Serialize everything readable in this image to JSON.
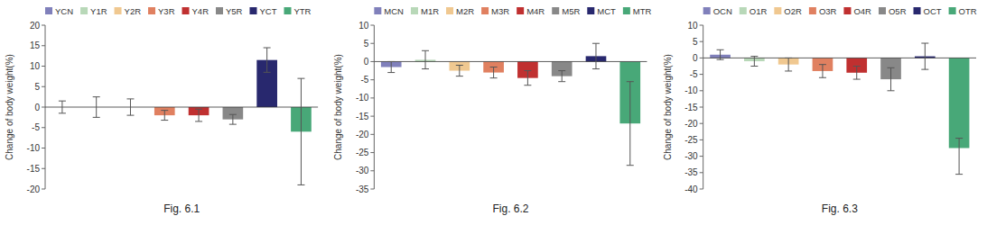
{
  "chart_data": [
    {
      "type": "bar",
      "title": "Fig. 6.1",
      "y_label": "Change of body weight(%)",
      "categories": [
        "YCN",
        "Y1R",
        "Y2R",
        "Y3R",
        "Y4R",
        "Y5R",
        "YCT",
        "YTR"
      ],
      "values": [
        0.0,
        0.0,
        0.0,
        -2.0,
        -2.0,
        -3.0,
        11.5,
        -6.0
      ],
      "errors_up": [
        1.5,
        2.5,
        2.0,
        1.2,
        1.5,
        1.2,
        3.0,
        13.0
      ],
      "errors_dn": [
        1.5,
        2.5,
        2.0,
        1.2,
        1.5,
        1.2,
        3.0,
        13.0
      ],
      "colors": [
        "#8080bb",
        "#b8d8b8",
        "#f0c890",
        "#e08060",
        "#c03030",
        "#888888",
        "#28286e",
        "#48a878"
      ],
      "ylim": [
        -20,
        20
      ],
      "yticks": [
        -20,
        -15,
        -10,
        -5,
        0,
        5,
        10,
        15,
        20
      ],
      "legend": "top",
      "grid": false,
      "tick_labels": "y"
    },
    {
      "type": "bar",
      "title": "Fig. 6.2",
      "y_label": "Change of body weight(%)",
      "categories": [
        "MCN",
        "M1R",
        "M2R",
        "M3R",
        "M4R",
        "M5R",
        "MCT",
        "MTR"
      ],
      "values": [
        -1.5,
        0.5,
        -2.5,
        -3.0,
        -4.5,
        -4.0,
        1.5,
        -17.0
      ],
      "errors_up": [
        1.5,
        2.5,
        1.5,
        1.5,
        2.0,
        1.5,
        3.5,
        11.5
      ],
      "errors_dn": [
        1.5,
        2.5,
        1.5,
        1.5,
        2.0,
        1.5,
        3.5,
        11.5
      ],
      "colors": [
        "#8080bb",
        "#b8d8b8",
        "#f0c890",
        "#e08060",
        "#c03030",
        "#888888",
        "#28286e",
        "#48a878"
      ],
      "ylim": [
        -35,
        10
      ],
      "yticks": [
        -35,
        -30,
        -25,
        -20,
        -15,
        -10,
        -5,
        0,
        5,
        10
      ],
      "legend": "top",
      "grid": false,
      "tick_labels": "y"
    },
    {
      "type": "bar",
      "title": "Fig. 6.3",
      "y_label": "Change of body weight(%)",
      "categories": [
        "OCN",
        "O1R",
        "O2R",
        "O3R",
        "O4R",
        "O5R",
        "OCT",
        "OTR"
      ],
      "values": [
        1.0,
        -1.0,
        -2.0,
        -4.0,
        -4.5,
        -6.5,
        0.5,
        -27.5
      ],
      "errors_up": [
        1.5,
        1.5,
        2.0,
        2.0,
        2.0,
        3.5,
        4.0,
        3.0
      ],
      "errors_dn": [
        1.5,
        1.5,
        2.0,
        2.0,
        2.0,
        3.5,
        4.0,
        8.0
      ],
      "colors": [
        "#8080bb",
        "#b8d8b8",
        "#f0c890",
        "#e08060",
        "#c03030",
        "#888888",
        "#28286e",
        "#48a878"
      ],
      "ylim": [
        -40,
        10
      ],
      "yticks": [
        -40,
        -35,
        -30,
        -25,
        -20,
        -15,
        -10,
        -5,
        0,
        5,
        10
      ],
      "legend": "top",
      "grid": false,
      "tick_labels": "y"
    }
  ]
}
